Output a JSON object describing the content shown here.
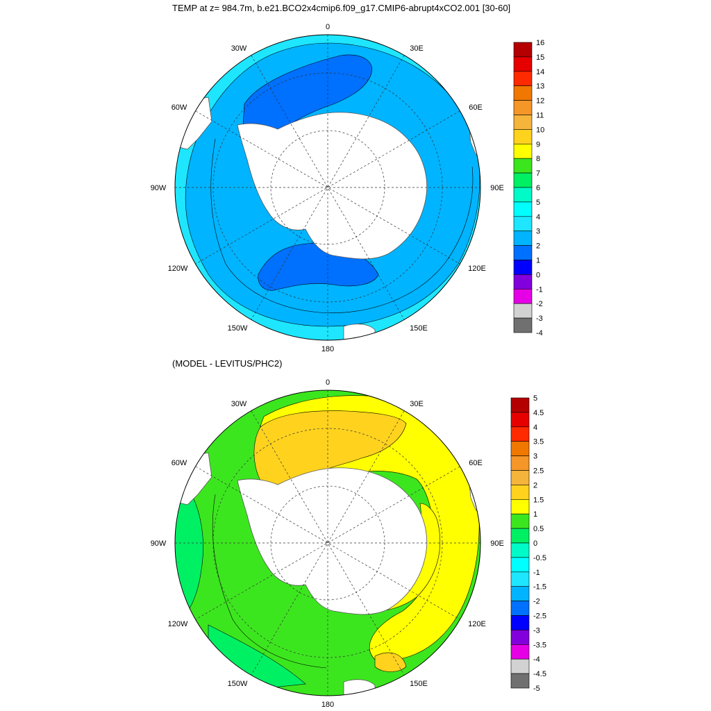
{
  "top_panel": {
    "title": "TEMP at z= 984.7m, b.e21.BCO2x4cmip6.f09_g17.CMIP6-abrupt4xCO2.001 [30-60]",
    "longitude_labels": [
      "0",
      "30E",
      "60E",
      "90E",
      "120E",
      "150E",
      "180",
      "150W",
      "120W",
      "90W",
      "60W",
      "30W"
    ],
    "colorbar": {
      "labels": [
        "16",
        "15",
        "14",
        "13",
        "12",
        "11",
        "10",
        "9",
        "8",
        "7",
        "6",
        "5",
        "4",
        "3",
        "2",
        "1",
        "0",
        "-1",
        "-2",
        "-3",
        "-4"
      ],
      "colors": [
        "#b40000",
        "#e60000",
        "#ff2a00",
        "#f07800",
        "#f59628",
        "#f5b43c",
        "#ffd21e",
        "#ffff00",
        "#3ce61e",
        "#00f064",
        "#00fac8",
        "#00ffff",
        "#1ee6ff",
        "#00b4ff",
        "#0070ff",
        "#0000ff",
        "#8200dc",
        "#e600e6",
        "#d2d2d2",
        "#707070"
      ]
    },
    "field_colors": {
      "warm": "#1ee6ff",
      "mid": "#00b4ff",
      "cool": "#0070ff"
    }
  },
  "bottom_panel": {
    "title": "(MODEL - LEVITUS/PHC2)",
    "longitude_labels": [
      "0",
      "30E",
      "60E",
      "90E",
      "120E",
      "150E",
      "180",
      "150W",
      "120W",
      "90W",
      "60W",
      "30W"
    ],
    "colorbar": {
      "labels": [
        "5",
        "4.5",
        "4",
        "3.5",
        "3",
        "2.5",
        "2",
        "1.5",
        "1",
        "0.5",
        "0",
        "-0.5",
        "-1",
        "-1.5",
        "-2",
        "-2.5",
        "-3",
        "-3.5",
        "-4",
        "-4.5",
        "-5"
      ],
      "colors": [
        "#b40000",
        "#e60000",
        "#ff2a00",
        "#f07800",
        "#f59628",
        "#f5b43c",
        "#ffd21e",
        "#ffff00",
        "#3ce61e",
        "#00f064",
        "#00fac8",
        "#00ffff",
        "#1ee6ff",
        "#00b4ff",
        "#0070ff",
        "#0000ff",
        "#8200dc",
        "#e600e6",
        "#d2d2d2",
        "#707070"
      ]
    },
    "field_colors": {
      "green": "#3ce61e",
      "lightgreen": "#00f064",
      "cyan": "#00fac8",
      "yellow": "#ffff00",
      "orange": "#ffd21e"
    }
  }
}
